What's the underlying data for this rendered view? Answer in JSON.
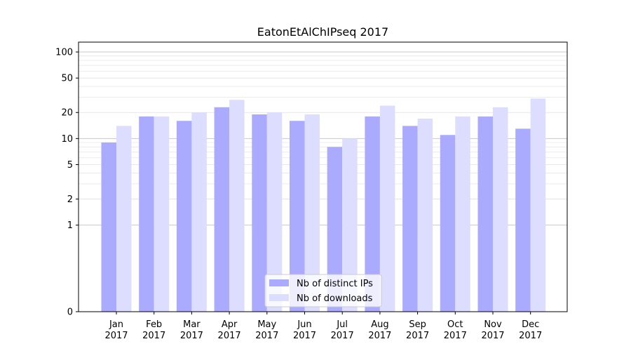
{
  "chart_data": {
    "type": "bar",
    "title": "EatonEtAlChIPseq 2017",
    "xlabel": "",
    "ylabel": "",
    "yscale": "symlog",
    "ylim": [
      0,
      130
    ],
    "yticks": [
      0,
      1,
      2,
      5,
      10,
      20,
      50,
      100
    ],
    "ytick_labels": [
      "0",
      "1",
      "2",
      "5",
      "10",
      "20",
      "50",
      "100"
    ],
    "grid": true,
    "legend_position": "bottom-center",
    "categories": [
      {
        "month": "Jan",
        "year": "2017"
      },
      {
        "month": "Feb",
        "year": "2017"
      },
      {
        "month": "Mar",
        "year": "2017"
      },
      {
        "month": "Apr",
        "year": "2017"
      },
      {
        "month": "May",
        "year": "2017"
      },
      {
        "month": "Jun",
        "year": "2017"
      },
      {
        "month": "Jul",
        "year": "2017"
      },
      {
        "month": "Aug",
        "year": "2017"
      },
      {
        "month": "Sep",
        "year": "2017"
      },
      {
        "month": "Oct",
        "year": "2017"
      },
      {
        "month": "Nov",
        "year": "2017"
      },
      {
        "month": "Dec",
        "year": "2017"
      }
    ],
    "series": [
      {
        "name": "Nb of distinct IPs",
        "color": "#aaaaff",
        "values": [
          9,
          18,
          16,
          23,
          19,
          16,
          8,
          18,
          14,
          11,
          18,
          13
        ]
      },
      {
        "name": "Nb of downloads",
        "color": "#ddddff",
        "values": [
          14,
          18,
          20,
          28,
          20,
          19,
          10,
          24,
          17,
          18,
          23,
          29
        ]
      }
    ]
  }
}
